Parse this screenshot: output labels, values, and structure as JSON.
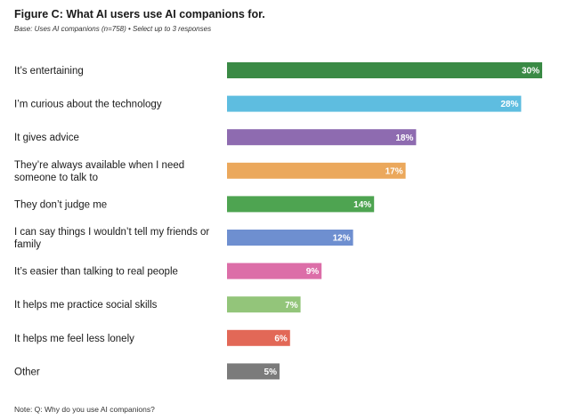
{
  "title": "Figure C: What AI users use AI companions for.",
  "subtitle": "Base: Uses AI companions (n=758) • Select up to 3 responses",
  "footnote": "Note: Q:  Why do you use AI companions?",
  "chart_data": {
    "type": "bar",
    "orientation": "horizontal",
    "title": "Figure C: What AI users use AI companions for.",
    "subtitle": "Base: Uses AI companions (n=758) • Select up to 3 responses",
    "xlabel": "",
    "ylabel": "",
    "grid": false,
    "legend": "none",
    "xlim": [
      0,
      30
    ],
    "categories": [
      "It’s entertaining",
      "I’m curious about the technology",
      "It gives advice",
      "They’re always available when I need someone to talk to",
      "They don’t judge me",
      "I can say things I wouldn’t tell my friends or family",
      "It’s easier than talking to real people",
      "It helps me practice social skills",
      "It helps me feel less lonely",
      "Other"
    ],
    "label_lines": [
      [
        "It’s entertaining"
      ],
      [
        "I’m curious about the technology"
      ],
      [
        "It gives advice"
      ],
      [
        "They’re always available when I need",
        "someone to talk to"
      ],
      [
        "They don’t judge me"
      ],
      [
        "I can say things I wouldn’t tell my friends or",
        "family"
      ],
      [
        "It’s easier than talking to real people"
      ],
      [
        "It helps me practice social skills"
      ],
      [
        "It helps me feel less lonely"
      ],
      [
        "Other"
      ]
    ],
    "values": [
      30,
      28,
      18,
      17,
      14,
      12,
      9,
      7,
      6,
      5
    ],
    "value_labels": [
      "30%",
      "28%",
      "18%",
      "17%",
      "14%",
      "12%",
      "9%",
      "7%",
      "6%",
      "5%"
    ],
    "colors": [
      "#3a8a45",
      "#5ebde0",
      "#8e6bb0",
      "#eba85c",
      "#4ea451",
      "#6e8fd0",
      "#dc6ea8",
      "#93c57a",
      "#e26857",
      "#7b7b7b"
    ]
  }
}
